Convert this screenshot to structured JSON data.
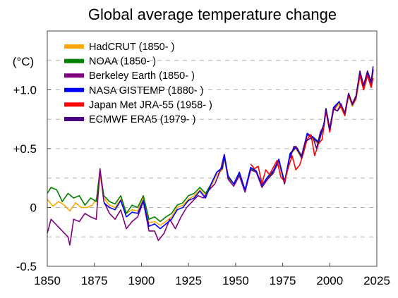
{
  "chart_data": {
    "type": "line",
    "title": "Global average temperature change",
    "ylabel": "(°C)",
    "xlabel": "",
    "xlim": [
      1850,
      2025
    ],
    "ylim": [
      -0.5,
      1.5
    ],
    "x_ticks": [
      1850,
      1875,
      1900,
      1925,
      1950,
      1975,
      2000,
      2025
    ],
    "y_ticks": [
      {
        "value": -0.5,
        "label": "-0.5"
      },
      {
        "value": 0,
        "label": "0"
      },
      {
        "value": 0.5,
        "label": "+0.5"
      },
      {
        "value": 1.0,
        "label": "+1.0"
      }
    ],
    "grid": "horizontal dashed",
    "legend_position": "top-left",
    "series": [
      {
        "name": "HadCRUT (1850- )",
        "color": "#FFA500",
        "x": [
          1850,
          1853,
          1856,
          1859,
          1862,
          1865,
          1868,
          1871,
          1874,
          1877,
          1878,
          1880,
          1883,
          1886,
          1889,
          1892,
          1895,
          1898,
          1901,
          1904,
          1907,
          1910,
          1913,
          1916,
          1919,
          1922,
          1925,
          1928,
          1931,
          1934,
          1937,
          1940,
          1943,
          1944,
          1946,
          1949,
          1952,
          1955,
          1958,
          1961,
          1964,
          1967,
          1970,
          1973,
          1976,
          1979,
          1982,
          1985,
          1988,
          1991,
          1994,
          1997,
          1998,
          2000,
          2002,
          2005,
          2008,
          2010,
          2012,
          2014,
          2016,
          2018,
          2020,
          2022,
          2023
        ],
        "y": [
          0.07,
          0.01,
          0.05,
          0.02,
          -0.03,
          0.04,
          0.0,
          0.0,
          0.02,
          0.1,
          0.28,
          0.08,
          0.02,
          0.0,
          0.07,
          -0.05,
          -0.02,
          -0.03,
          0.08,
          -0.13,
          -0.12,
          -0.15,
          -0.12,
          -0.08,
          0.0,
          0.02,
          0.07,
          0.1,
          0.15,
          0.1,
          0.18,
          0.28,
          0.32,
          0.42,
          0.25,
          0.2,
          0.28,
          0.14,
          0.32,
          0.3,
          0.18,
          0.25,
          0.3,
          0.38,
          0.2,
          0.45,
          0.5,
          0.42,
          0.62,
          0.58,
          0.54,
          0.7,
          0.82,
          0.65,
          0.82,
          0.88,
          0.78,
          0.95,
          0.86,
          0.92,
          1.12,
          1.0,
          1.12,
          1.03,
          1.16
        ]
      },
      {
        "name": "NOAA (1850- )",
        "color": "#008000",
        "x": [
          1850,
          1852,
          1855,
          1858,
          1861,
          1864,
          1867,
          1870,
          1873,
          1876,
          1878,
          1880,
          1883,
          1886,
          1889,
          1892,
          1895,
          1898,
          1901,
          1904,
          1907,
          1910,
          1913,
          1916,
          1919,
          1922,
          1925,
          1928,
          1931,
          1934,
          1937,
          1940,
          1943,
          1944,
          1946,
          1949,
          1952,
          1955,
          1958,
          1961,
          1964,
          1967,
          1970,
          1973,
          1976,
          1979,
          1982,
          1985,
          1988,
          1991,
          1994,
          1997,
          1998,
          2000,
          2002,
          2005,
          2008,
          2010,
          2012,
          2014,
          2016,
          2018,
          2020,
          2022,
          2023
        ],
        "y": [
          0.12,
          0.17,
          0.15,
          0.05,
          0.12,
          0.08,
          0.1,
          0.02,
          0.08,
          0.05,
          0.32,
          0.1,
          0.05,
          0.03,
          0.1,
          -0.05,
          0.02,
          0.0,
          0.1,
          -0.1,
          -0.08,
          -0.12,
          -0.08,
          -0.05,
          0.02,
          0.04,
          0.1,
          0.12,
          0.17,
          0.12,
          0.2,
          0.3,
          0.33,
          0.43,
          0.26,
          0.2,
          0.28,
          0.14,
          0.33,
          0.3,
          0.18,
          0.25,
          0.3,
          0.4,
          0.22,
          0.46,
          0.52,
          0.44,
          0.62,
          0.6,
          0.56,
          0.72,
          0.84,
          0.66,
          0.84,
          0.9,
          0.8,
          0.96,
          0.88,
          0.94,
          1.13,
          1.02,
          1.14,
          1.04,
          1.17
        ]
      },
      {
        "name": "Berkeley Earth (1850- )",
        "color": "#800080",
        "x": [
          1850,
          1852,
          1855,
          1858,
          1861,
          1862,
          1864,
          1867,
          1870,
          1873,
          1876,
          1878,
          1880,
          1883,
          1886,
          1889,
          1892,
          1895,
          1898,
          1901,
          1904,
          1907,
          1909,
          1912,
          1915,
          1918,
          1921,
          1924,
          1927,
          1930,
          1933,
          1936,
          1939,
          1942,
          1944,
          1946,
          1949,
          1952,
          1955,
          1958,
          1961,
          1964,
          1967,
          1970,
          1973,
          1976,
          1979,
          1982,
          1985,
          1988,
          1991,
          1994,
          1997,
          1998,
          2000,
          2002,
          2005,
          2008,
          2010,
          2012,
          2014,
          2016,
          2018,
          2020,
          2022,
          2023
        ],
        "y": [
          -0.22,
          -0.1,
          -0.15,
          -0.2,
          -0.25,
          -0.32,
          -0.1,
          -0.12,
          -0.05,
          -0.08,
          -0.1,
          0.33,
          0.05,
          -0.05,
          -0.1,
          -0.02,
          -0.18,
          -0.12,
          -0.08,
          0.05,
          -0.2,
          -0.2,
          -0.28,
          -0.22,
          -0.1,
          -0.18,
          -0.08,
          0.0,
          0.05,
          0.1,
          0.08,
          0.15,
          0.2,
          0.32,
          0.45,
          0.24,
          0.18,
          0.27,
          0.13,
          0.32,
          0.3,
          0.17,
          0.24,
          0.29,
          0.4,
          0.2,
          0.45,
          0.52,
          0.43,
          0.62,
          0.59,
          0.55,
          0.71,
          0.83,
          0.66,
          0.83,
          0.9,
          0.79,
          0.96,
          0.87,
          0.93,
          1.14,
          1.02,
          1.14,
          1.05,
          1.17
        ]
      },
      {
        "name": "NASA GISTEMP (1880- )",
        "color": "#0000FF",
        "x": [
          1880,
          1883,
          1886,
          1889,
          1892,
          1895,
          1898,
          1901,
          1904,
          1907,
          1910,
          1913,
          1916,
          1919,
          1922,
          1925,
          1928,
          1931,
          1934,
          1937,
          1940,
          1943,
          1944,
          1946,
          1949,
          1952,
          1955,
          1958,
          1961,
          1964,
          1967,
          1970,
          1973,
          1976,
          1979,
          1982,
          1985,
          1988,
          1991,
          1994,
          1997,
          1998,
          2000,
          2002,
          2005,
          2008,
          2010,
          2012,
          2014,
          2016,
          2018,
          2020,
          2022,
          2023
        ],
        "y": [
          0.04,
          0.0,
          -0.02,
          0.06,
          -0.08,
          -0.04,
          -0.05,
          0.06,
          -0.16,
          -0.14,
          -0.18,
          -0.14,
          -0.1,
          -0.02,
          0.0,
          0.06,
          0.08,
          0.14,
          0.08,
          0.2,
          0.3,
          0.34,
          0.45,
          0.27,
          0.2,
          0.3,
          0.15,
          0.34,
          0.31,
          0.19,
          0.26,
          0.31,
          0.41,
          0.21,
          0.46,
          0.51,
          0.43,
          0.63,
          0.6,
          0.55,
          0.72,
          0.84,
          0.67,
          0.85,
          0.9,
          0.8,
          0.97,
          0.88,
          0.95,
          1.15,
          1.03,
          1.15,
          1.06,
          1.18
        ]
      },
      {
        "name": "Japan Met JRA-55 (1958- )",
        "color": "#FF0000",
        "x": [
          1958,
          1960,
          1962,
          1964,
          1966,
          1968,
          1970,
          1972,
          1974,
          1976,
          1978,
          1980,
          1982,
          1984,
          1986,
          1988,
          1990,
          1992,
          1994,
          1996,
          1998,
          2000,
          2002,
          2004,
          2006,
          2008,
          2010,
          2012,
          2014,
          2016,
          2018,
          2020,
          2022,
          2023
        ],
        "y": [
          0.37,
          0.33,
          0.35,
          0.2,
          0.32,
          0.28,
          0.34,
          0.4,
          0.26,
          0.22,
          0.34,
          0.44,
          0.32,
          0.36,
          0.46,
          0.58,
          0.62,
          0.44,
          0.54,
          0.58,
          0.82,
          0.64,
          0.84,
          0.82,
          0.86,
          0.78,
          0.96,
          0.88,
          0.94,
          1.12,
          1.0,
          1.12,
          1.02,
          1.1
        ]
      },
      {
        "name": "ECMWF ERA5 (1979- )",
        "color": "#4B0082",
        "x": [
          1979,
          1981,
          1983,
          1985,
          1987,
          1989,
          1991,
          1993,
          1995,
          1997,
          1998,
          2000,
          2002,
          2004,
          2006,
          2008,
          2010,
          2012,
          2014,
          2016,
          2018,
          2020,
          2022,
          2023
        ],
        "y": [
          0.42,
          0.52,
          0.5,
          0.42,
          0.56,
          0.58,
          0.6,
          0.5,
          0.64,
          0.7,
          0.84,
          0.66,
          0.84,
          0.82,
          0.88,
          0.8,
          0.97,
          0.88,
          0.95,
          1.16,
          1.04,
          1.16,
          1.07,
          1.2
        ]
      }
    ]
  }
}
